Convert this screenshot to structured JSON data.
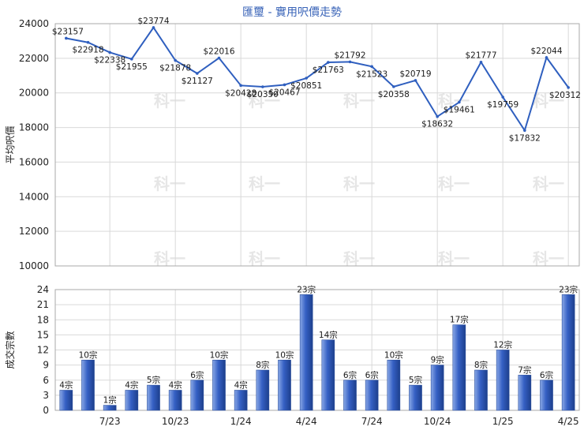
{
  "chart_data": [
    {
      "type": "line",
      "title": "匯璽 - 實用呎價走勢",
      "ylabel": "平均呎價",
      "ylim": [
        10000,
        24000
      ],
      "yticks": [
        10000,
        12000,
        14000,
        16000,
        18000,
        20000,
        22000,
        24000
      ],
      "grid": true,
      "color": "#2f5fbf",
      "values": [
        23157,
        22918,
        22338,
        21955,
        23774,
        21878,
        21127,
        22016,
        20428,
        20350,
        20467,
        20851,
        21763,
        21792,
        21523,
        20358,
        20719,
        18632,
        19461,
        21777,
        19759,
        17832,
        22044,
        20312
      ],
      "labels": [
        "$23157",
        "$22918",
        "$22338",
        "$21955",
        "$23774",
        "$21878",
        "$21127",
        "$22016",
        "$20428",
        "$20350",
        "$20467",
        "$20851",
        "$21763",
        "$21792",
        "$21523",
        "$20358",
        "$20719",
        "$18632",
        "$19461",
        "$21777",
        "$19759",
        "$17832",
        "$22044",
        "$20312"
      ]
    },
    {
      "type": "bar",
      "ylabel": "成交宗數",
      "ylim": [
        0,
        24
      ],
      "yticks": [
        0,
        3,
        6,
        9,
        12,
        15,
        18,
        21,
        24
      ],
      "grid": true,
      "color": "#3560c4",
      "values": [
        4,
        10,
        1,
        4,
        5,
        4,
        6,
        10,
        4,
        8,
        10,
        23,
        14,
        6,
        6,
        10,
        5,
        9,
        17,
        8,
        12,
        7,
        6,
        23
      ],
      "labels": [
        "4宗",
        "10宗",
        "1宗",
        "4宗",
        "5宗",
        "4宗",
        "6宗",
        "10宗",
        "4宗",
        "8宗",
        "10宗",
        "23宗",
        "14宗",
        "6宗",
        "6宗",
        "10宗",
        "5宗",
        "9宗",
        "17宗",
        "8宗",
        "12宗",
        "7宗",
        "6宗",
        "23宗"
      ],
      "x_tick_labels": [
        {
          "index": 2,
          "label": "7/23"
        },
        {
          "index": 5,
          "label": "10/23"
        },
        {
          "index": 8,
          "label": "1/24"
        },
        {
          "index": 11,
          "label": "4/24"
        },
        {
          "index": 14,
          "label": "7/24"
        },
        {
          "index": 17,
          "label": "10/24"
        },
        {
          "index": 20,
          "label": "1/25"
        },
        {
          "index": 23,
          "label": "4/25"
        }
      ]
    }
  ],
  "watermark": "科一"
}
